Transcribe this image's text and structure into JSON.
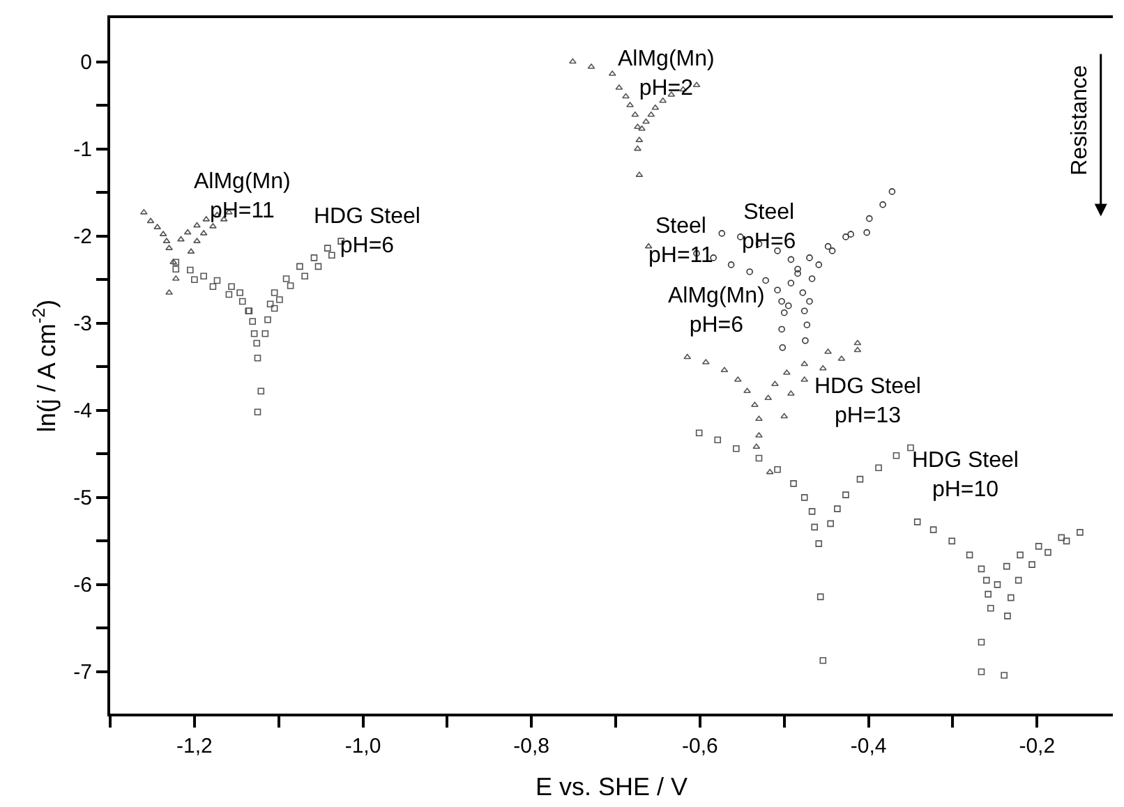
{
  "chart_data": {
    "type": "scatter",
    "xlabel": "E vs. SHE / V",
    "ylabel": "ln(j / A cm$^{-2}$)",
    "xlim": [
      -1.3,
      -0.11
    ],
    "ylim": [
      -7.48,
      0.5
    ],
    "xticks": [
      {
        "value": -1.3,
        "label": null
      },
      {
        "value": -1.2,
        "label": "-1,2"
      },
      {
        "value": -1.1,
        "label": null
      },
      {
        "value": -1.0,
        "label": "-1,0"
      },
      {
        "value": -0.9,
        "label": null
      },
      {
        "value": -0.8,
        "label": "-0,8"
      },
      {
        "value": -0.7,
        "label": null
      },
      {
        "value": -0.6,
        "label": "-0,6"
      },
      {
        "value": -0.5,
        "label": null
      },
      {
        "value": -0.4,
        "label": "-0,4"
      },
      {
        "value": -0.3,
        "label": null
      },
      {
        "value": -0.2,
        "label": "-0,2"
      }
    ],
    "yticks": [
      0,
      {
        "value": -0.5,
        "label": null
      },
      -1,
      {
        "value": -1.5,
        "label": null
      },
      -2,
      {
        "value": -2.5,
        "label": null
      },
      -3,
      {
        "value": -3.5,
        "label": null
      },
      -4,
      {
        "value": -4.5,
        "label": null
      },
      -5,
      {
        "value": -5.5,
        "label": null
      },
      -6,
      {
        "value": -6.5,
        "label": null
      },
      -7
    ],
    "line_style": "none",
    "series": [
      {
        "marker": "triangle",
        "color": "#555555",
        "x": [
          -1.26,
          -1.252,
          -1.244,
          -1.237,
          -1.233,
          -1.23,
          -1.225,
          -1.222,
          -1.23,
          -1.216,
          -1.208,
          -1.197,
          -1.186,
          -1.173,
          -1.159,
          -1.204,
          -1.197,
          -1.189,
          -1.178,
          -1.165
        ],
        "values": [
          -1.73,
          -1.83,
          -1.9,
          -1.98,
          -2.06,
          -2.14,
          -2.3,
          -2.49,
          -2.65,
          -2.04,
          -1.96,
          -1.88,
          -1.81,
          -1.76,
          -1.73,
          -2.18,
          -2.06,
          -1.97,
          -1.89,
          -1.81
        ]
      },
      {
        "marker": "square",
        "color": "#555555",
        "x": [
          -1.222,
          -1.205,
          -1.189,
          -1.173,
          -1.156,
          -1.146,
          -1.135,
          -1.131,
          -1.126,
          -1.125,
          -1.121,
          -1.125,
          -1.222,
          -1.2,
          -1.178,
          -1.159,
          -1.143,
          -1.136,
          -1.129,
          -1.116,
          -1.11,
          -1.105,
          -1.091,
          -1.075,
          -1.058,
          -1.042,
          -1.026,
          -1.113,
          -1.105,
          -1.099,
          -1.086,
          -1.069,
          -1.053,
          -1.037
        ],
        "values": [
          -2.3,
          -2.39,
          -2.46,
          -2.51,
          -2.58,
          -2.65,
          -2.86,
          -2.98,
          -3.23,
          -3.4,
          -3.78,
          -4.02,
          -2.38,
          -2.5,
          -2.58,
          -2.67,
          -2.75,
          -2.86,
          -3.12,
          -3.12,
          -2.78,
          -2.65,
          -2.49,
          -2.35,
          -2.25,
          -2.14,
          -2.06,
          -2.96,
          -2.83,
          -2.73,
          -2.57,
          -2.46,
          -2.35,
          -2.22
        ]
      },
      {
        "marker": "triangle",
        "color": "#555555",
        "x": [
          -0.751,
          -0.729,
          -0.704,
          -0.696,
          -0.688,
          -0.683,
          -0.677,
          -0.674,
          -0.672,
          -0.674,
          -0.672,
          -0.661,
          -0.669,
          -0.664,
          -0.658,
          -0.653,
          -0.644,
          -0.634,
          -0.62,
          -0.604
        ],
        "values": [
          0.0,
          -0.06,
          -0.14,
          -0.3,
          -0.4,
          -0.5,
          -0.61,
          -0.75,
          -0.9,
          -1.0,
          -1.3,
          -2.12,
          -0.77,
          -0.69,
          -0.61,
          -0.53,
          -0.45,
          -0.38,
          -0.32,
          -0.27
        ]
      },
      {
        "marker": "circle",
        "color": "#333333",
        "x": [
          -0.604,
          -0.584,
          -0.563,
          -0.541,
          -0.522,
          -0.508,
          -0.503,
          -0.5,
          -0.503,
          -0.502,
          -0.495,
          -0.492,
          -0.484,
          -0.47,
          -0.448,
          -0.427,
          -0.402
        ],
        "values": [
          -2.2,
          -2.25,
          -2.33,
          -2.41,
          -2.51,
          -2.62,
          -2.75,
          -2.88,
          -3.07,
          -3.28,
          -2.8,
          -2.54,
          -2.38,
          -2.25,
          -2.12,
          -2.01,
          -1.96
        ]
      },
      {
        "marker": "circle",
        "color": "#333333",
        "x": [
          -0.574,
          -0.552,
          -0.53,
          -0.508,
          -0.492,
          -0.484,
          -0.478,
          -0.476,
          -0.473,
          -0.475,
          -0.47,
          -0.467,
          -0.459,
          -0.443,
          -0.421,
          -0.399,
          -0.383,
          -0.372
        ],
        "values": [
          -1.97,
          -2.01,
          -2.09,
          -2.17,
          -2.27,
          -2.43,
          -2.65,
          -2.86,
          -3.02,
          -3.2,
          -2.75,
          -2.49,
          -2.33,
          -2.17,
          -1.98,
          -1.8,
          -1.64,
          -1.49
        ]
      },
      {
        "marker": "triangle",
        "color": "#555555",
        "x": [
          -0.615,
          -0.593,
          -0.571,
          -0.555,
          -0.544,
          -0.535,
          -0.53,
          -0.53,
          -0.533,
          -0.517,
          -0.519,
          -0.511,
          -0.497,
          -0.476,
          -0.448,
          -0.413,
          -0.5,
          -0.492,
          -0.476,
          -0.454,
          -0.432,
          -0.413
        ],
        "values": [
          -3.39,
          -3.45,
          -3.54,
          -3.65,
          -3.78,
          -3.94,
          -4.1,
          -4.29,
          -4.42,
          -4.71,
          -3.86,
          -3.7,
          -3.57,
          -3.47,
          -3.33,
          -3.23,
          -4.07,
          -3.81,
          -3.65,
          -3.52,
          -3.41,
          -3.31
        ]
      },
      {
        "marker": "square",
        "color": "#555555",
        "x": [
          -0.601,
          -0.579,
          -0.557,
          -0.53,
          -0.508,
          -0.489,
          -0.476,
          -0.467,
          -0.464,
          -0.459,
          -0.457,
          -0.454,
          -0.445,
          -0.437,
          -0.427,
          -0.41,
          -0.388,
          -0.367,
          -0.35
        ],
        "values": [
          -4.26,
          -4.34,
          -4.44,
          -4.55,
          -4.68,
          -4.84,
          -5.0,
          -5.16,
          -5.34,
          -5.53,
          -6.14,
          -6.87,
          -5.3,
          -5.13,
          -4.97,
          -4.79,
          -4.66,
          -4.52,
          -4.43
        ]
      },
      {
        "marker": "square",
        "color": "#555555",
        "x": [
          -0.342,
          -0.323,
          -0.301,
          -0.28,
          -0.266,
          -0.26,
          -0.258,
          -0.255,
          -0.266,
          -0.266,
          -0.247,
          -0.236,
          -0.22,
          -0.198,
          -0.171,
          -0.149,
          -0.239,
          -0.235,
          -0.231,
          -0.222,
          -0.206,
          -0.187,
          -0.165
        ],
        "values": [
          -5.28,
          -5.37,
          -5.5,
          -5.66,
          -5.82,
          -5.95,
          -6.11,
          -6.27,
          -6.66,
          -7.0,
          -6.0,
          -5.79,
          -5.66,
          -5.56,
          -5.46,
          -5.4,
          -7.04,
          -6.36,
          -6.15,
          -5.95,
          -5.77,
          -5.63,
          -5.5
        ]
      }
    ],
    "annotations": [
      "AlMg(Mn)\npH=11",
      "HDG Steel\npH=6",
      "AlMg(Mn)\npH=2",
      "Steel\npH=11",
      "Steel\npH=6",
      "AlMg(Mn)\npH=6",
      "HDG Steel\npH=13",
      "HDG Steel\npH=10",
      "Resistance"
    ]
  }
}
